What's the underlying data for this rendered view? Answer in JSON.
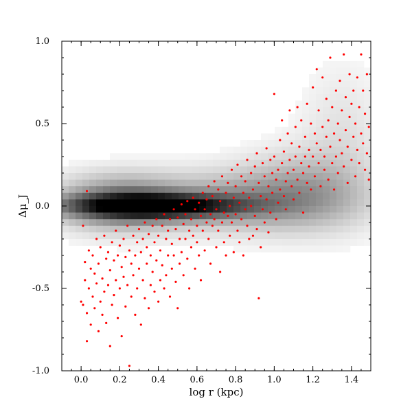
{
  "chart_data": {
    "type": "scatter",
    "xlabel": "log r (kpc)",
    "ylabel": "Δμ_J",
    "xlim": [
      -0.1,
      1.5
    ],
    "ylim": [
      -1.0,
      1.0
    ],
    "x_ticks": [
      0.0,
      0.2,
      0.4,
      0.6,
      0.8,
      1.0,
      1.2,
      1.4
    ],
    "x_tick_labels": [
      "0.0",
      "0.2",
      "0.4",
      "0.6",
      "0.8",
      "1.0",
      "1.2",
      "1.4"
    ],
    "y_ticks": [
      -1.0,
      -0.5,
      0.0,
      0.5,
      1.0
    ],
    "y_tick_labels": [
      "-1.0",
      "-0.5",
      "0.0",
      "0.5",
      "1.0"
    ],
    "grid": false,
    "point_color": "#ff0000",
    "background_density": {
      "type": "heatmap",
      "colormap": "grayscale",
      "components": [
        {
          "x": 0.38,
          "y": 0.0,
          "sx": 0.3,
          "sy": 0.05,
          "w": 1.0
        },
        {
          "x": 0.2,
          "y": 0.02,
          "sx": 0.22,
          "sy": 0.11,
          "w": 0.45
        },
        {
          "x": 0.85,
          "y": 0.03,
          "sx": 0.35,
          "sy": 0.12,
          "w": 0.3
        },
        {
          "x": 1.15,
          "y": 0.1,
          "sx": 0.22,
          "sy": 0.16,
          "w": 0.2
        },
        {
          "x": 1.35,
          "y": 0.4,
          "sx": 0.15,
          "sy": 0.3,
          "w": 0.08
        }
      ]
    },
    "series": [
      {
        "points": [
          [
            0.0,
            -0.58
          ],
          [
            0.01,
            -0.12
          ],
          [
            0.01,
            -0.6
          ],
          [
            0.02,
            -0.34
          ],
          [
            0.02,
            -0.45
          ],
          [
            0.03,
            -0.65
          ],
          [
            0.03,
            -0.82
          ],
          [
            0.03,
            0.09
          ],
          [
            0.04,
            -0.27
          ],
          [
            0.04,
            -0.5
          ],
          [
            0.05,
            -0.38
          ],
          [
            0.05,
            -0.72
          ],
          [
            0.06,
            -0.3
          ],
          [
            0.06,
            -0.55
          ],
          [
            0.07,
            -0.41
          ],
          [
            0.07,
            -0.62
          ],
          [
            0.08,
            -0.2
          ],
          [
            0.08,
            -0.47
          ],
          [
            0.09,
            -0.35
          ],
          [
            0.09,
            -0.76
          ],
          [
            0.1,
            -0.25
          ],
          [
            0.1,
            -0.58
          ],
          [
            0.11,
            -0.44
          ],
          [
            0.11,
            -0.66
          ],
          [
            0.12,
            -0.18
          ],
          [
            0.12,
            -0.52
          ],
          [
            0.13,
            -0.32
          ],
          [
            0.13,
            -0.71
          ],
          [
            0.14,
            -0.28
          ],
          [
            0.14,
            -0.48
          ],
          [
            0.15,
            -0.39
          ],
          [
            0.15,
            -0.85
          ],
          [
            0.16,
            -0.22
          ],
          [
            0.16,
            -0.6
          ],
          [
            0.17,
            -0.33
          ],
          [
            0.17,
            -0.54
          ],
          [
            0.18,
            -0.15
          ],
          [
            0.18,
            -0.45
          ],
          [
            0.19,
            -0.3
          ],
          [
            0.19,
            -0.68
          ],
          [
            0.2,
            -0.24
          ],
          [
            0.2,
            -0.5
          ],
          [
            0.21,
            -0.37
          ],
          [
            0.21,
            -0.79
          ],
          [
            0.22,
            -0.2
          ],
          [
            0.22,
            -0.43
          ],
          [
            0.23,
            -0.31
          ],
          [
            0.23,
            -0.61
          ],
          [
            0.24,
            -0.12
          ],
          [
            0.24,
            -0.48
          ],
          [
            0.25,
            -0.27
          ],
          [
            0.25,
            -0.97
          ],
          [
            0.26,
            -0.35
          ],
          [
            0.26,
            -0.55
          ],
          [
            0.27,
            -0.18
          ],
          [
            0.27,
            -0.42
          ],
          [
            0.28,
            -0.3
          ],
          [
            0.28,
            -0.66
          ],
          [
            0.29,
            -0.22
          ],
          [
            0.29,
            -0.5
          ],
          [
            0.3,
            -0.14
          ],
          [
            0.3,
            -0.38
          ],
          [
            0.31,
            -0.28
          ],
          [
            0.31,
            -0.72
          ],
          [
            0.32,
            -0.2
          ],
          [
            0.32,
            -0.45
          ],
          [
            0.33,
            -0.1
          ],
          [
            0.33,
            -0.56
          ],
          [
            0.34,
            -0.25
          ],
          [
            0.34,
            -0.35
          ],
          [
            0.35,
            -0.17
          ],
          [
            0.35,
            -0.62
          ],
          [
            0.36,
            -0.3
          ],
          [
            0.36,
            -0.48
          ],
          [
            0.37,
            -0.12
          ],
          [
            0.37,
            -0.4
          ],
          [
            0.38,
            -0.22
          ],
          [
            0.38,
            -0.52
          ],
          [
            0.39,
            -0.08
          ],
          [
            0.39,
            -0.33
          ],
          [
            0.4,
            -0.18
          ],
          [
            0.4,
            -0.58
          ],
          [
            0.41,
            -0.27
          ],
          [
            0.41,
            -0.45
          ],
          [
            0.42,
            -0.12
          ],
          [
            0.42,
            -0.36
          ],
          [
            0.43,
            -0.05
          ],
          [
            0.43,
            -0.5
          ],
          [
            0.44,
            -0.2
          ],
          [
            0.44,
            -0.42
          ],
          [
            0.45,
            -0.15
          ],
          [
            0.45,
            -0.3
          ],
          [
            0.46,
            -0.08
          ],
          [
            0.46,
            -0.55
          ],
          [
            0.47,
            -0.23
          ],
          [
            0.47,
            -0.38
          ],
          [
            0.48,
            -0.02
          ],
          [
            0.48,
            -0.3
          ],
          [
            0.49,
            -0.14
          ],
          [
            0.49,
            -0.46
          ],
          [
            0.5,
            -0.07
          ],
          [
            0.5,
            -0.62
          ],
          [
            0.51,
            -0.2
          ],
          [
            0.51,
            -0.35
          ],
          [
            0.52,
            0.01
          ],
          [
            0.52,
            -0.28
          ],
          [
            0.53,
            -0.11
          ],
          [
            0.53,
            -0.42
          ],
          [
            0.54,
            -0.05
          ],
          [
            0.54,
            -0.2
          ],
          [
            0.55,
            0.03
          ],
          [
            0.55,
            -0.32
          ],
          [
            0.56,
            -0.15
          ],
          [
            0.56,
            -0.5
          ],
          [
            0.57,
            -0.08
          ],
          [
            0.57,
            -0.25
          ],
          [
            0.58,
            0.05
          ],
          [
            0.58,
            -0.18
          ],
          [
            0.59,
            -0.02
          ],
          [
            0.59,
            -0.38
          ],
          [
            0.6,
            -0.12
          ],
          [
            0.6,
            -0.22
          ],
          [
            0.61,
            0.02
          ],
          [
            0.61,
            -0.3
          ],
          [
            0.62,
            -0.06
          ],
          [
            0.62,
            -0.45
          ],
          [
            0.63,
            0.08
          ],
          [
            0.63,
            -0.15
          ],
          [
            0.64,
            -0.02
          ],
          [
            0.64,
            -0.27
          ],
          [
            0.65,
            0.04
          ],
          [
            0.65,
            -0.1
          ],
          [
            0.66,
            0.12
          ],
          [
            0.66,
            -0.2
          ],
          [
            0.67,
            -0.05
          ],
          [
            0.67,
            -0.35
          ],
          [
            0.68,
            0.06
          ],
          [
            0.68,
            -0.12
          ],
          [
            0.69,
            0.15
          ],
          [
            0.69,
            -0.08
          ],
          [
            0.7,
            -0.02
          ],
          [
            0.7,
            -0.25
          ],
          [
            0.71,
            0.1
          ],
          [
            0.71,
            -0.15
          ],
          [
            0.72,
            0.03
          ],
          [
            0.72,
            -0.4
          ],
          [
            0.73,
            0.18
          ],
          [
            0.73,
            -0.1
          ],
          [
            0.74,
            -0.04
          ],
          [
            0.74,
            -0.22
          ],
          [
            0.75,
            0.08
          ],
          [
            0.75,
            -0.3
          ],
          [
            0.76,
            0.14
          ],
          [
            0.76,
            -0.06
          ],
          [
            0.77,
            0.0
          ],
          [
            0.77,
            -0.18
          ],
          [
            0.78,
            0.22
          ],
          [
            0.78,
            -0.1
          ],
          [
            0.79,
            0.05
          ],
          [
            0.79,
            -0.28
          ],
          [
            0.8,
            0.12
          ],
          [
            0.8,
            -0.05
          ],
          [
            0.81,
            0.25
          ],
          [
            0.81,
            -0.15
          ],
          [
            0.82,
            0.02
          ],
          [
            0.82,
            -0.22
          ],
          [
            0.83,
            0.18
          ],
          [
            0.83,
            -0.08
          ],
          [
            0.84,
            0.08
          ],
          [
            0.84,
            -0.3
          ],
          [
            0.85,
            0.15
          ],
          [
            0.85,
            -0.02
          ],
          [
            0.86,
            0.28
          ],
          [
            0.86,
            -0.12
          ],
          [
            0.87,
            0.05
          ],
          [
            0.87,
            -0.2
          ],
          [
            0.88,
            0.2
          ],
          [
            0.88,
            0.0
          ],
          [
            0.89,
            0.1
          ],
          [
            0.89,
            -0.18
          ],
          [
            0.9,
            0.24
          ],
          [
            0.9,
            -0.06
          ],
          [
            0.91,
            0.32
          ],
          [
            0.91,
            -0.14
          ],
          [
            0.92,
            0.14
          ],
          [
            0.92,
            -0.56
          ],
          [
            0.93,
            0.06
          ],
          [
            0.93,
            -0.25
          ],
          [
            0.94,
            0.26
          ],
          [
            0.94,
            -0.02
          ],
          [
            0.95,
            0.18
          ],
          [
            0.95,
            -0.1
          ],
          [
            0.96,
            0.35
          ],
          [
            0.96,
            0.04
          ],
          [
            0.97,
            0.12
          ],
          [
            0.97,
            -0.16
          ],
          [
            0.98,
            0.28
          ],
          [
            0.98,
            -0.04
          ],
          [
            0.99,
            0.2
          ],
          [
            0.99,
            0.08
          ],
          [
            1.0,
            0.68
          ],
          [
            1.0,
            0.3
          ],
          [
            1.01,
            0.16
          ],
          [
            1.01,
            -0.08
          ],
          [
            1.02,
            0.22
          ],
          [
            1.02,
            0.02
          ],
          [
            1.03,
            0.4
          ],
          [
            1.03,
            0.1
          ],
          [
            1.04,
            0.52
          ],
          [
            1.04,
            0.26
          ],
          [
            1.05,
            0.06
          ],
          [
            1.05,
            0.33
          ],
          [
            1.06,
            0.15
          ],
          [
            1.06,
            -0.02
          ],
          [
            1.07,
            0.44
          ],
          [
            1.07,
            0.2
          ],
          [
            1.08,
            0.28
          ],
          [
            1.08,
            0.58
          ],
          [
            1.09,
            0.12
          ],
          [
            1.09,
            0.38
          ],
          [
            1.1,
            0.22
          ],
          [
            1.1,
            0.04
          ],
          [
            1.11,
            0.48
          ],
          [
            1.11,
            0.3
          ],
          [
            1.12,
            0.16
          ],
          [
            1.12,
            0.6
          ],
          [
            1.13,
            0.36
          ],
          [
            1.13,
            0.08
          ],
          [
            1.14,
            0.26
          ],
          [
            1.14,
            0.52
          ],
          [
            1.15,
            0.2
          ],
          [
            1.15,
            -0.04
          ],
          [
            1.16,
            0.42
          ],
          [
            1.16,
            0.3
          ],
          [
            1.17,
            0.14
          ],
          [
            1.17,
            0.62
          ],
          [
            1.18,
            0.34
          ],
          [
            1.18,
            0.24
          ],
          [
            1.19,
            0.5
          ],
          [
            1.19,
            0.1
          ],
          [
            1.2,
            0.3
          ],
          [
            1.2,
            0.72
          ],
          [
            1.21,
            0.18
          ],
          [
            1.21,
            0.44
          ],
          [
            1.22,
            0.38
          ],
          [
            1.22,
            0.83
          ],
          [
            1.23,
            0.26
          ],
          [
            1.23,
            0.58
          ],
          [
            1.24,
            0.12
          ],
          [
            1.24,
            0.34
          ],
          [
            1.25,
            0.48
          ],
          [
            1.25,
            0.78
          ],
          [
            1.26,
            0.22
          ],
          [
            1.26,
            0.3
          ],
          [
            1.27,
            0.65
          ],
          [
            1.27,
            0.42
          ],
          [
            1.28,
            0.16
          ],
          [
            1.28,
            0.52
          ],
          [
            1.29,
            0.36
          ],
          [
            1.29,
            0.9
          ],
          [
            1.3,
            0.26
          ],
          [
            1.3,
            0.6
          ],
          [
            1.31,
            0.44
          ],
          [
            1.31,
            0.1
          ],
          [
            1.32,
            0.7
          ],
          [
            1.32,
            0.3
          ],
          [
            1.33,
            0.5
          ],
          [
            1.33,
            0.2
          ],
          [
            1.34,
            0.4
          ],
          [
            1.34,
            0.76
          ],
          [
            1.35,
            0.32
          ],
          [
            1.35,
            0.58
          ],
          [
            1.36,
            0.92
          ],
          [
            1.36,
            0.24
          ],
          [
            1.37,
            0.46
          ],
          [
            1.37,
            0.66
          ],
          [
            1.38,
            0.36
          ],
          [
            1.38,
            0.14
          ],
          [
            1.39,
            0.54
          ],
          [
            1.39,
            0.8
          ],
          [
            1.4,
            0.28
          ],
          [
            1.4,
            0.62
          ],
          [
            1.41,
            0.42
          ],
          [
            1.41,
            0.7
          ],
          [
            1.42,
            0.18
          ],
          [
            1.42,
            0.5
          ],
          [
            1.43,
            0.34
          ],
          [
            1.43,
            0.78
          ],
          [
            1.44,
            0.6
          ],
          [
            1.44,
            0.26
          ],
          [
            1.45,
            0.44
          ],
          [
            1.45,
            0.92
          ],
          [
            1.46,
            0.38
          ],
          [
            1.46,
            0.7
          ],
          [
            1.47,
            0.22
          ],
          [
            1.47,
            0.56
          ],
          [
            1.48,
            0.8
          ],
          [
            1.48,
            0.32
          ],
          [
            1.49,
            0.48
          ],
          [
            1.49,
            0.16
          ]
        ]
      }
    ]
  }
}
